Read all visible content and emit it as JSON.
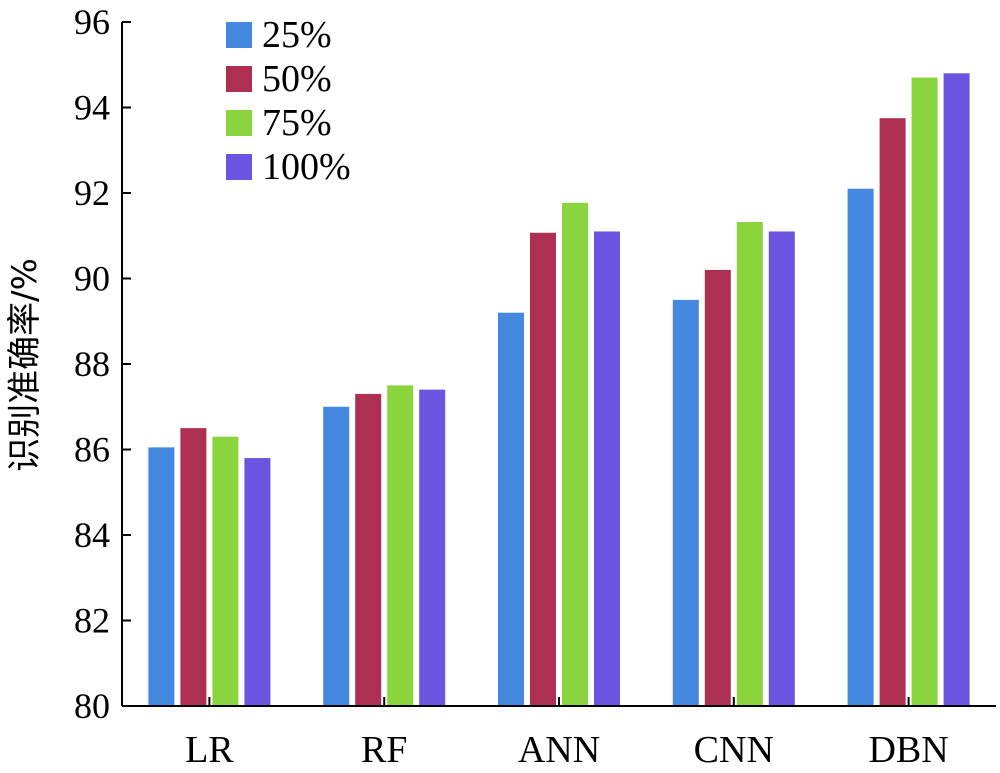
{
  "chart_data": {
    "type": "bar",
    "title": "",
    "xlabel": "",
    "ylabel": "识别准确率/%",
    "ylim": [
      80,
      96
    ],
    "yticks": [
      80,
      82,
      84,
      86,
      88,
      90,
      92,
      94,
      96
    ],
    "categories": [
      "LR",
      "RF",
      "ANN",
      "CNN",
      "DBN"
    ],
    "legend_position": "top-left",
    "grid": false,
    "series": [
      {
        "name": "25%",
        "color": "#4488e0",
        "values": [
          86.05,
          87.0,
          89.2,
          89.5,
          92.1
        ]
      },
      {
        "name": "50%",
        "color": "#ad3053",
        "values": [
          86.5,
          87.3,
          91.07,
          90.2,
          93.75
        ]
      },
      {
        "name": "75%",
        "color": "#8ad43e",
        "values": [
          86.3,
          87.5,
          91.77,
          91.32,
          94.7
        ]
      },
      {
        "name": "100%",
        "color": "#6a54e0",
        "values": [
          85.8,
          87.4,
          91.1,
          91.1,
          94.8
        ]
      }
    ]
  }
}
